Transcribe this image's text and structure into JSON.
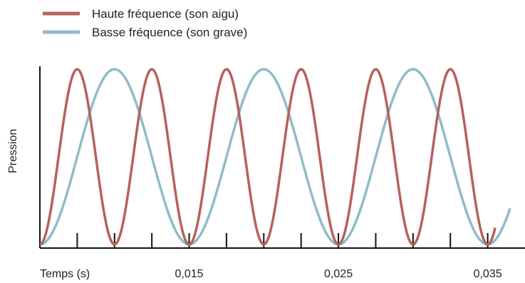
{
  "chart_data": {
    "type": "line",
    "xlabel": "Temps (s)",
    "ylabel": "Pression",
    "x_tick_labels": [
      {
        "x": 0.015,
        "label": "0,015"
      },
      {
        "x": 0.025,
        "label": "0,025"
      },
      {
        "x": 0.035,
        "label": "0,035"
      }
    ],
    "x_ticks": [
      0.0075,
      0.01,
      0.0125,
      0.015,
      0.0175,
      0.02,
      0.0225,
      0.025,
      0.0275,
      0.03,
      0.0325,
      0.035
    ],
    "xlim": [
      0.005,
      0.0375
    ],
    "ylim": [
      0,
      1
    ],
    "grid": false,
    "legend_position": "top-left",
    "series": [
      {
        "name": "Haute fréquence (son aigu)",
        "color": "#b5625d",
        "period": 0.005,
        "start": 0.005,
        "end": 0.0355,
        "note": "pressure oscillation, high frequency"
      },
      {
        "name": "Basse fréquence (son grave)",
        "color": "#8fbcc9",
        "period": 0.01,
        "start": 0.005,
        "end": 0.0365,
        "note": "pressure oscillation, low frequency"
      }
    ]
  }
}
